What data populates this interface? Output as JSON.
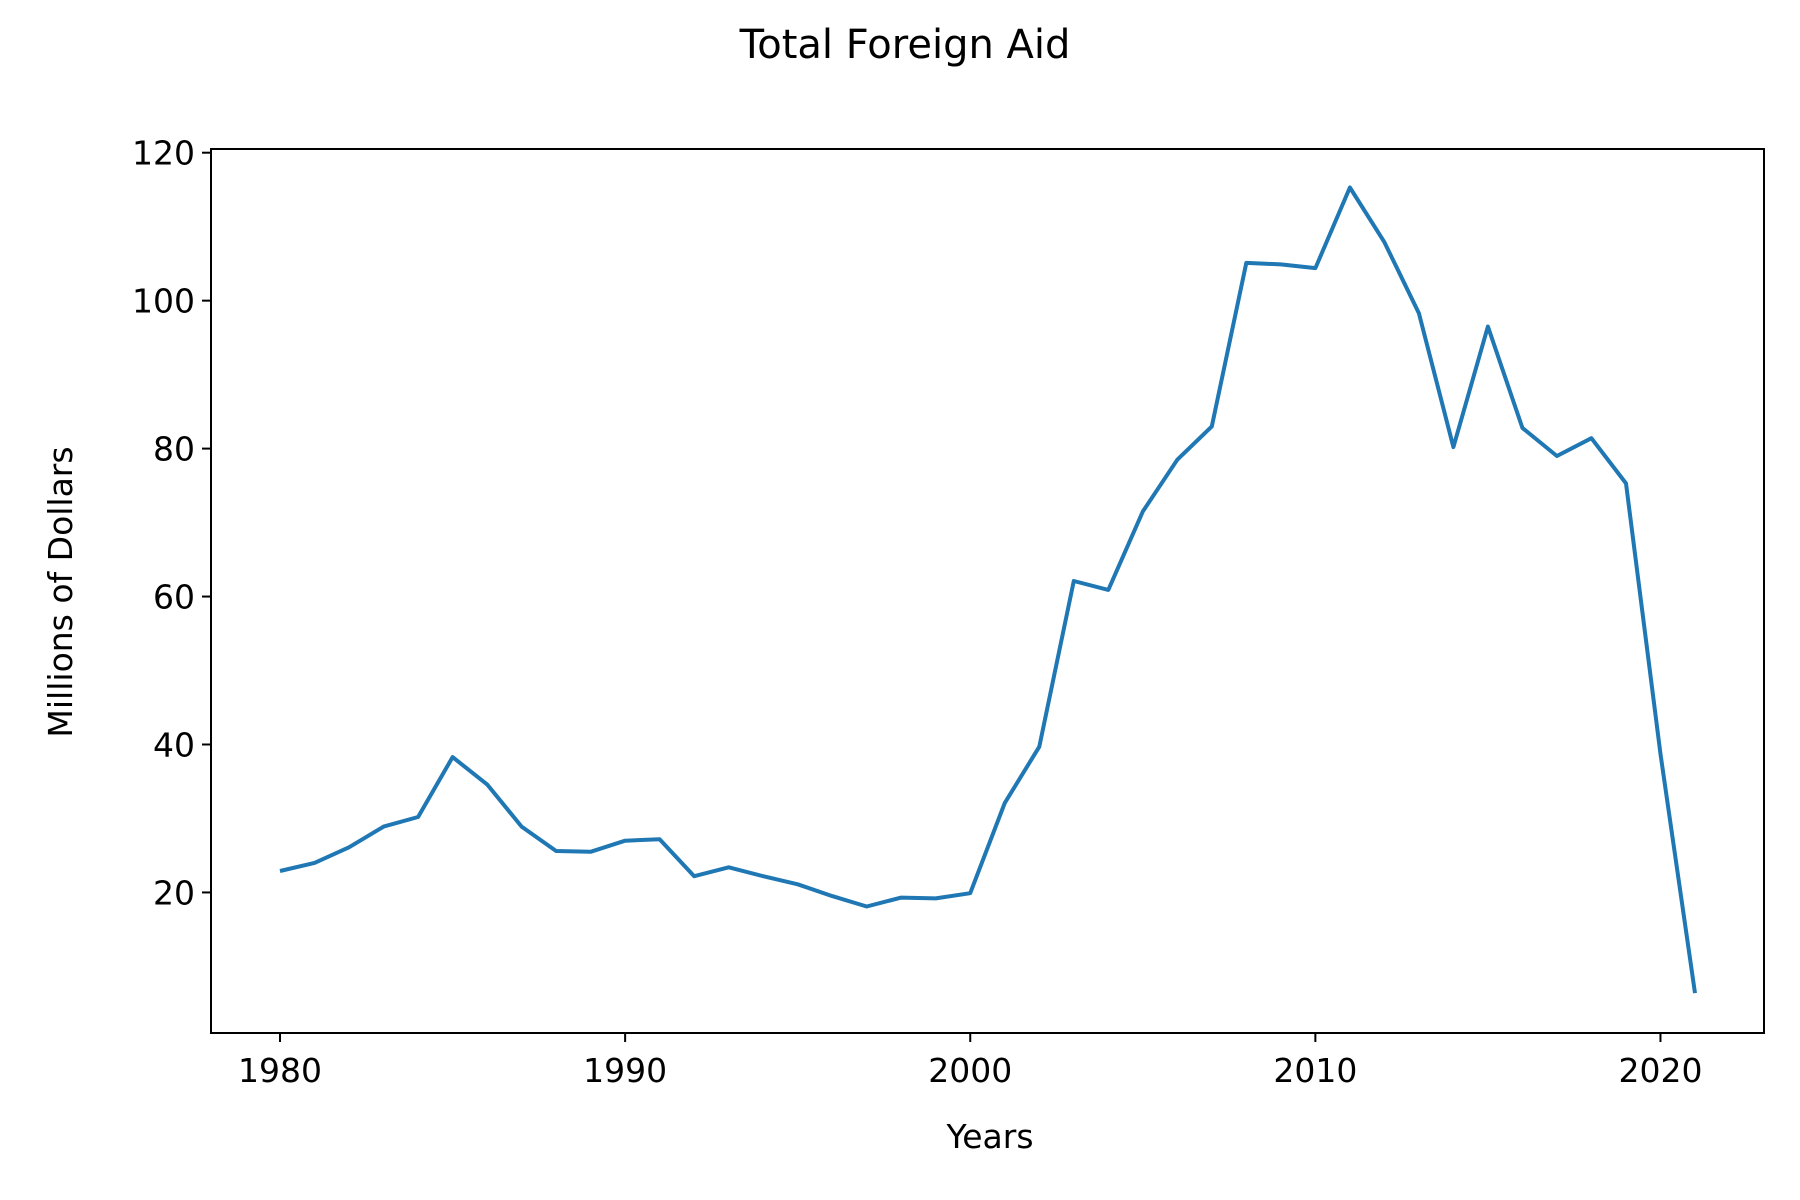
{
  "chart_data": {
    "type": "line",
    "title": "Total Foreign Aid",
    "xlabel": "Years",
    "ylabel": "Millions of Dollars",
    "xlim": [
      1978,
      2023
    ],
    "ylim": [
      1,
      120.5
    ],
    "xticks": [
      1980,
      1990,
      2000,
      2010,
      2020
    ],
    "yticks": [
      20,
      40,
      60,
      80,
      100,
      120
    ],
    "grid": false,
    "legend": "none",
    "line_color": "#1f77b4",
    "series": [
      {
        "x": [
          1980,
          1981,
          1982,
          1983,
          1984,
          1985,
          1986,
          1987,
          1988,
          1989,
          1990,
          1991,
          1992,
          1993,
          1994,
          1995,
          1996,
          1997,
          1998,
          1999,
          2000,
          2001,
          2002,
          2003,
          2004,
          2005,
          2006,
          2007,
          2008,
          2009,
          2010,
          2011,
          2012,
          2013,
          2014,
          2015,
          2016,
          2017,
          2018,
          2019,
          2020,
          2021
        ],
        "values": [
          22.9,
          24.0,
          26.1,
          28.9,
          30.2,
          38.3,
          34.6,
          28.9,
          25.6,
          25.5,
          27.0,
          27.2,
          22.2,
          23.4,
          22.2,
          21.1,
          19.5,
          18.1,
          19.3,
          19.2,
          19.9,
          32.1,
          39.7,
          62.1,
          60.9,
          71.5,
          78.5,
          83.0,
          105.1,
          104.9,
          104.4,
          115.3,
          107.9,
          98.3,
          80.2,
          96.5,
          82.8,
          79.0,
          81.4,
          75.3,
          38.7,
          6.4
        ]
      }
    ]
  }
}
